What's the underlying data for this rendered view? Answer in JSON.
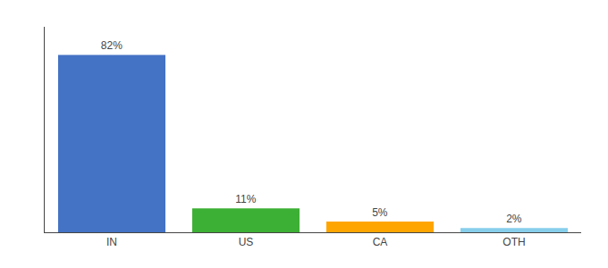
{
  "chart_data": {
    "type": "bar",
    "categories": [
      "IN",
      "US",
      "CA",
      "OTH"
    ],
    "values": [
      82,
      11,
      5,
      2
    ],
    "value_labels": [
      "82%",
      "11%",
      "5%",
      "2%"
    ],
    "data_labels": true,
    "colors": [
      "#4472C4",
      "#3CB034",
      "#FFA500",
      "#87CEEB"
    ],
    "ylim": [
      0,
      95
    ],
    "grid": false,
    "tick_labels": "x"
  }
}
